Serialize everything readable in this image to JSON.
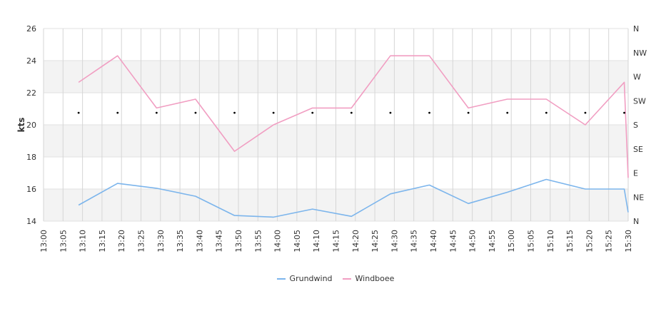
{
  "chart_data": {
    "type": "line",
    "ylabel": "kts",
    "ylim": [
      14,
      26
    ],
    "y_ticks": [
      "14",
      "16",
      "18",
      "20",
      "22",
      "24",
      "26"
    ],
    "y2_ticks": [
      "N",
      "NE",
      "E",
      "SE",
      "S",
      "SW",
      "W",
      "NW",
      "N"
    ],
    "x_ticks": [
      "13:00",
      "13:05",
      "13:10",
      "13:15",
      "13:20",
      "13:25",
      "13:30",
      "13:35",
      "13:40",
      "13:45",
      "13:50",
      "13:55",
      "14:00",
      "14:05",
      "14:10",
      "14:15",
      "14:20",
      "14:25",
      "14:30",
      "14:35",
      "14:40",
      "14:45",
      "14:50",
      "14:55",
      "15:00",
      "15:05",
      "15:10",
      "15:15",
      "15:20",
      "15:25",
      "15:30"
    ],
    "grid": true,
    "legend_position": "bottom",
    "series": [
      {
        "name": "Grundwind",
        "color": "#7cb5ec",
        "x": [
          "13:09",
          "13:19",
          "13:29",
          "13:39",
          "13:49",
          "13:59",
          "14:09",
          "14:19",
          "14:29",
          "14:39",
          "14:49",
          "14:59",
          "15:09",
          "15:19",
          "15:29",
          "15:30"
        ],
        "values": [
          15.0,
          16.35,
          16.05,
          15.55,
          14.35,
          14.25,
          14.75,
          14.3,
          15.7,
          16.25,
          15.1,
          15.8,
          16.6,
          16.0,
          16.0,
          14.55
        ]
      },
      {
        "name": "Windboee",
        "color": "#f19ec2",
        "x": [
          "13:09",
          "13:19",
          "13:29",
          "13:39",
          "13:49",
          "13:59",
          "14:09",
          "14:19",
          "14:29",
          "14:39",
          "14:49",
          "14:59",
          "15:09",
          "15:19",
          "15:29",
          "15:30"
        ],
        "values": [
          22.65,
          24.3,
          21.05,
          21.6,
          18.35,
          20.0,
          21.05,
          21.05,
          24.3,
          24.3,
          21.05,
          21.6,
          21.6,
          20.0,
          22.65,
          16.7
        ]
      }
    ],
    "direction_markers": {
      "x": [
        "13:09",
        "13:19",
        "13:29",
        "13:39",
        "13:49",
        "13:59",
        "14:09",
        "14:19",
        "14:29",
        "14:39",
        "14:49",
        "14:59",
        "15:09",
        "15:19",
        "15:29"
      ],
      "values": [
        "SW",
        "SW",
        "SW",
        "SW",
        "SW",
        "SW",
        "SW",
        "SW",
        "SW",
        "SW",
        "SW",
        "SW",
        "SW",
        "SW",
        "SW"
      ]
    }
  }
}
